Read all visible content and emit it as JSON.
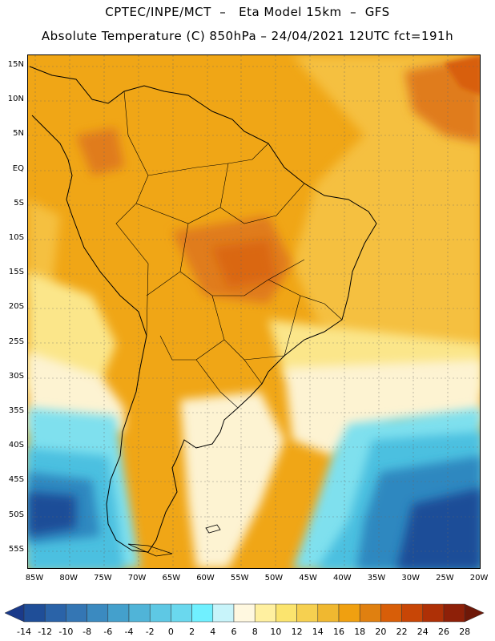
{
  "header": {
    "title_line1": "CPTEC/INPE/MCT  –   Eta Model 15km  –  GFS",
    "title_line2": "Absolute Temperature (C) 850hPa – 24/04/2021 12UTC fct=191h"
  },
  "map": {
    "lat_labels": [
      "15N",
      "10N",
      "5N",
      "EQ",
      "5S",
      "10S",
      "15S",
      "20S",
      "25S",
      "30S",
      "35S",
      "40S",
      "45S",
      "50S",
      "55S"
    ],
    "lon_labels": [
      "85W",
      "80W",
      "75W",
      "70W",
      "65W",
      "60W",
      "55W",
      "50W",
      "45W",
      "40W",
      "35W",
      "30W",
      "25W",
      "20W"
    ],
    "colors": {
      "warm_orange": "#f0a616",
      "deep_orange": "#e07b1e",
      "light_orange": "#f5c040",
      "yellow": "#fbe68a",
      "cream": "#fdf3d2",
      "cyan": "#7fe0ee",
      "light_blue": "#4cc0e0",
      "mid_blue": "#2f88c0",
      "dark_blue": "#1f4e98"
    }
  },
  "colorbar": {
    "labels": [
      "-14",
      "-12",
      "-10",
      "-8",
      "-6",
      "-4",
      "-2",
      "0",
      "2",
      "4",
      "6",
      "8",
      "10",
      "12",
      "14",
      "16",
      "18",
      "20",
      "22",
      "24",
      "26",
      "28"
    ],
    "colors": [
      "#1a3a8a",
      "#1f4e98",
      "#2a63a8",
      "#3476b4",
      "#3b8ac0",
      "#44a0cc",
      "#50b4d8",
      "#5ec8e4",
      "#6ad8ee",
      "#70f0ff",
      "#c8f4fa",
      "#fff8e0",
      "#fff0a0",
      "#fbe46e",
      "#f6d050",
      "#f0b830",
      "#f0a010",
      "#e08010",
      "#d85e08",
      "#c84606",
      "#ae3006",
      "#8e2008",
      "#6e1808"
    ]
  }
}
